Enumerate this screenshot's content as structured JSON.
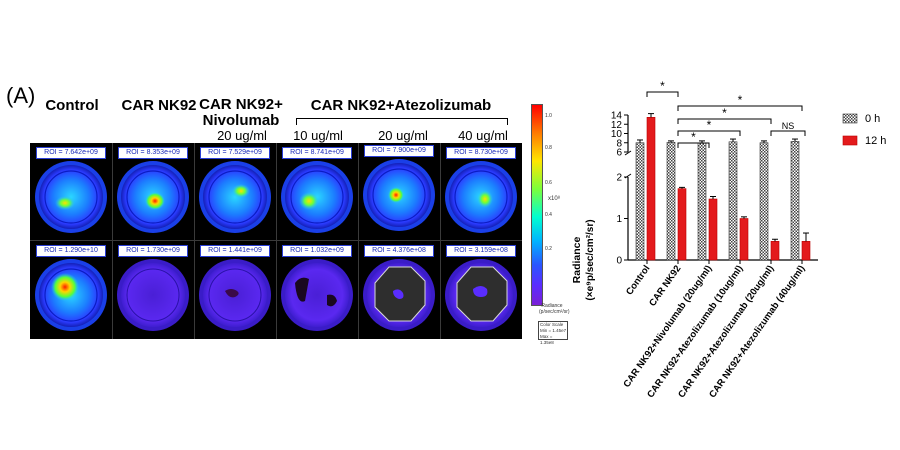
{
  "figure": {
    "panel_label": "(A)",
    "columns": [
      {
        "title": "Control",
        "subtitle": ""
      },
      {
        "title": "CAR NK92",
        "subtitle": ""
      },
      {
        "title": "CAR NK92+\nNivolumab",
        "subtitle": "20 ug/ml"
      },
      {
        "title": "",
        "subtitle": "10 ug/ml"
      },
      {
        "title": "",
        "subtitle": "20 ug/ml"
      },
      {
        "title": "",
        "subtitle": "40 ug/ml"
      }
    ],
    "group_title": "CAR NK92+Atezolizumab",
    "roi_top": [
      "ROI = 7.642e+09",
      "ROI = 8.353e+09",
      "ROI = 7.529e+09",
      "ROI = 8.741e+09",
      "ROI = 7.900e+09",
      "ROI = 8.730e+09"
    ],
    "roi_bottom": [
      "ROI = 1.290e+10",
      "ROI = 1.730e+09",
      "ROI = 1.441e+09",
      "ROI = 1.032e+09",
      "ROI = 4.376e+08",
      "ROI = 3.159e+08"
    ],
    "colorbar": {
      "ticks": [
        "1.0",
        "0.8",
        "0.6",
        "0.4",
        "0.2"
      ],
      "unit": "x10⁸",
      "caption": "Radiance\n(p/sec/cm²/sr)",
      "box_lines": [
        "Color Scale",
        "Min = 1.45e7",
        "Max = 1.35e8"
      ]
    },
    "colors": {
      "zero_h": "#9a9a9a",
      "twelve_h": "#e31a1c"
    }
  },
  "chart_data": {
    "type": "bar",
    "categories": [
      "Control",
      "CAR NK92",
      "CAR NK92+Nivolumab (20ug/ml)",
      "CAR NK92+Atezolizumab (10ug/ml)",
      "CAR NK92+Atezolizumab (20ug/ml)",
      "CAR NK92+Atezolizumab (40ug/ml)"
    ],
    "series": [
      {
        "name": "0 h",
        "values": [
          8.0,
          8.1,
          7.9,
          8.2,
          8.0,
          8.3
        ],
        "errors": [
          0.6,
          0.3,
          0.5,
          0.6,
          0.4,
          0.5
        ]
      },
      {
        "name": "12 h",
        "values": [
          13.5,
          1.72,
          1.47,
          1.0,
          0.45,
          0.45
        ],
        "errors": [
          0.8,
          0.03,
          0.06,
          0.04,
          0.05,
          0.2
        ]
      }
    ],
    "ylabel_line1": "Radiance",
    "ylabel_line2": "(×e⁹p/sec/cm²/sr)",
    "yticks_upper": [
      "14",
      "12",
      "10",
      "8",
      "6"
    ],
    "yticks_lower": [
      "2",
      "1",
      "0"
    ],
    "ylim": [
      0,
      15
    ],
    "axis_break": [
      2,
      6
    ],
    "significance": [
      {
        "label": "*",
        "from": 0,
        "to": 1
      },
      {
        "label": "*",
        "from": 1,
        "to": 5
      },
      {
        "label": "*",
        "from": 1,
        "to": 4
      },
      {
        "label": "*",
        "from": 1,
        "to": 3
      },
      {
        "label": "*",
        "from": 1,
        "to": 2
      },
      {
        "label": "NS",
        "from": 4,
        "to": 5
      }
    ],
    "legend_position": "top-right"
  }
}
